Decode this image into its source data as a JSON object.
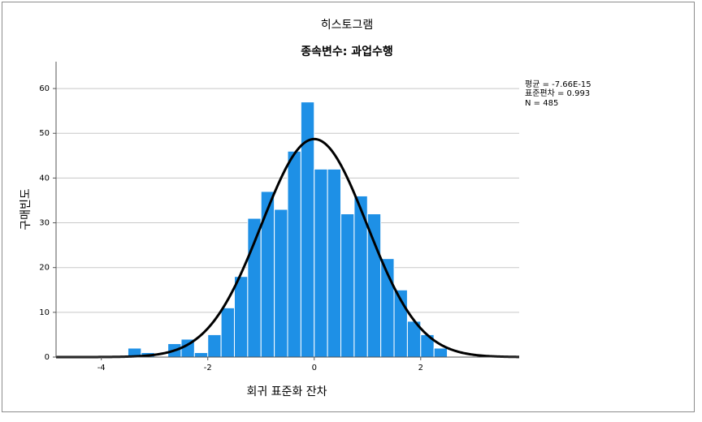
{
  "chart_data": {
    "type": "bar",
    "title": "히스토그램",
    "subtitle": "종속변수: 과업수행",
    "xlabel": "회귀 표준화 잔차",
    "ylabel": "구매빈도",
    "xlim": [
      -4.85,
      3.85
    ],
    "ylim": [
      0,
      66
    ],
    "x_ticks": [
      -4,
      -2,
      0,
      2
    ],
    "x_tick_labels": [
      "-4",
      "-2",
      "0",
      "2"
    ],
    "y_ticks": [
      0,
      10,
      20,
      30,
      40,
      50,
      60
    ],
    "y_tick_labels": [
      "0",
      "10",
      "20",
      "30",
      "40",
      "50",
      "60"
    ],
    "grid": "horizontal",
    "bar_color": "#1e90e6",
    "bar_edge_color": "#ffffff",
    "curve_color": "#000000",
    "bin_width": 0.25,
    "bins": [
      {
        "x0": -3.5,
        "x1": -3.25,
        "count": 2
      },
      {
        "x0": -3.25,
        "x1": -3.0,
        "count": 1
      },
      {
        "x0": -2.75,
        "x1": -2.5,
        "count": 3
      },
      {
        "x0": -2.5,
        "x1": -2.25,
        "count": 4
      },
      {
        "x0": -2.25,
        "x1": -2.0,
        "count": 1
      },
      {
        "x0": -2.0,
        "x1": -1.75,
        "count": 5
      },
      {
        "x0": -1.75,
        "x1": -1.5,
        "count": 11
      },
      {
        "x0": -1.5,
        "x1": -1.25,
        "count": 18
      },
      {
        "x0": -1.25,
        "x1": -1.0,
        "count": 31
      },
      {
        "x0": -1.0,
        "x1": -0.75,
        "count": 37
      },
      {
        "x0": -0.75,
        "x1": -0.5,
        "count": 33
      },
      {
        "x0": -0.5,
        "x1": -0.25,
        "count": 46
      },
      {
        "x0": -0.25,
        "x1": 0.0,
        "count": 57
      },
      {
        "x0": 0.0,
        "x1": 0.25,
        "count": 42
      },
      {
        "x0": 0.25,
        "x1": 0.5,
        "count": 42
      },
      {
        "x0": 0.5,
        "x1": 0.75,
        "count": 32
      },
      {
        "x0": 0.75,
        "x1": 1.0,
        "count": 36
      },
      {
        "x0": 1.0,
        "x1": 1.25,
        "count": 32
      },
      {
        "x0": 1.25,
        "x1": 1.5,
        "count": 22
      },
      {
        "x0": 1.5,
        "x1": 1.75,
        "count": 15
      },
      {
        "x0": 1.75,
        "x1": 2.0,
        "count": 8
      },
      {
        "x0": 2.0,
        "x1": 2.25,
        "count": 5
      },
      {
        "x0": 2.25,
        "x1": 2.5,
        "count": 2
      }
    ],
    "normal_curve": {
      "mean": 0,
      "sd": 0.993,
      "n": 485
    },
    "stats": {
      "mean": "평균 = -7.66E-15",
      "sd": "표준편차 = 0.993",
      "n": "N = 485"
    }
  }
}
